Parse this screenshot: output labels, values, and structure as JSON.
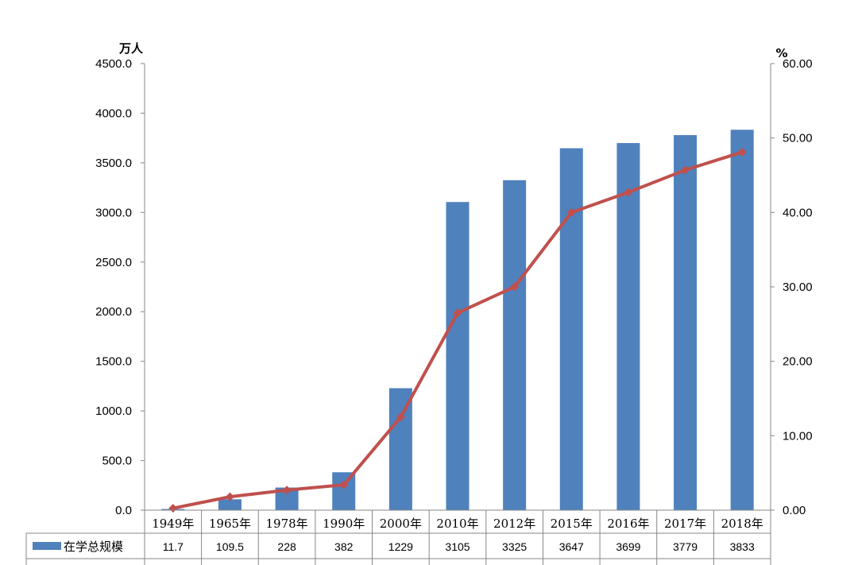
{
  "chart_data": {
    "type": "bar",
    "categories": [
      "1949年",
      "1965年",
      "1978年",
      "1990年",
      "2000年",
      "2010年",
      "2012年",
      "2015年",
      "2016年",
      "2017年",
      "2018年"
    ],
    "series": [
      {
        "name": "在学总规模",
        "type": "bar",
        "axis": "left",
        "color": "#4F81BD",
        "values": [
          11.7,
          109.5,
          228,
          382,
          1229,
          3105,
          3325,
          3647,
          3699,
          3779,
          3833
        ],
        "value_labels": [
          "11.7",
          "109.5",
          "228",
          "382",
          "1229",
          "3105",
          "3325",
          "3647",
          "3699",
          "3779",
          "3833"
        ]
      },
      {
        "type": "line",
        "axis": "right",
        "color": "#C0504D",
        "values": [
          0.26,
          1.8,
          2.7,
          3.4,
          12.5,
          26.5,
          30.0,
          40.0,
          42.7,
          45.7,
          48.1
        ]
      }
    ],
    "yaxis_left": {
      "unit": "万人",
      "range": [
        0,
        4500
      ],
      "ticks": [
        "0.0",
        "500.0",
        "1000.0",
        "1500.0",
        "2000.0",
        "2500.0",
        "3000.0",
        "3500.0",
        "4000.0",
        "4500.0"
      ]
    },
    "yaxis_right": {
      "unit": "%",
      "range": [
        0,
        60
      ],
      "ticks": [
        "0.00",
        "10.00",
        "20.00",
        "30.00",
        "40.00",
        "50.00",
        "60.00"
      ]
    },
    "grid": false,
    "legend": "data-table"
  }
}
